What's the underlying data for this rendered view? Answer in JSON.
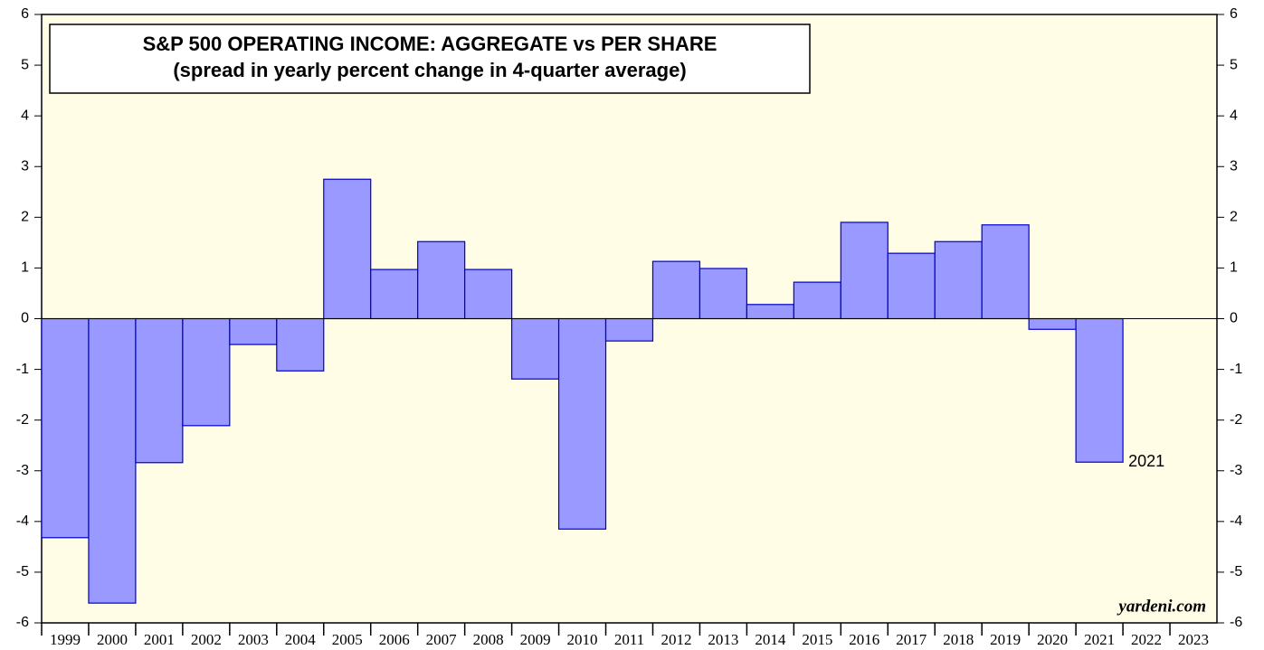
{
  "chart_data": {
    "type": "bar",
    "title": "S&P 500 OPERATING INCOME: AGGREGATE vs PER SHARE",
    "subtitle": "(spread in yearly percent change in 4-quarter average)",
    "categories": [
      "1999",
      "2000",
      "2001",
      "2002",
      "2003",
      "2004",
      "2005",
      "2006",
      "2007",
      "2008",
      "2009",
      "2010",
      "2011",
      "2012",
      "2013",
      "2014",
      "2015",
      "2016",
      "2017",
      "2018",
      "2019",
      "2020",
      "2021",
      "2022",
      "2023"
    ],
    "values": [
      -4.32,
      -5.61,
      -2.84,
      -2.11,
      -0.51,
      -1.03,
      2.75,
      0.97,
      1.52,
      0.97,
      -1.19,
      -4.15,
      -0.44,
      1.13,
      0.99,
      0.28,
      0.72,
      1.9,
      1.29,
      1.52,
      1.85,
      -0.21,
      -2.83,
      null,
      null
    ],
    "color": "#9999ff",
    "edge_color": "#0000cc",
    "annotation": "2021",
    "source": "yardeni.com",
    "ylim": [
      -6,
      6
    ],
    "yticks": [
      -6,
      -5,
      -4,
      -3,
      -2,
      -1,
      0,
      1,
      2,
      3,
      4,
      5,
      6
    ]
  }
}
